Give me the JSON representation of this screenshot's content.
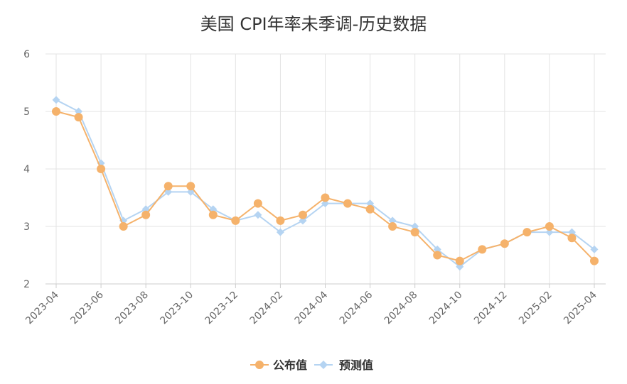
{
  "chart_data": {
    "type": "line",
    "title": "美国 CPI年率未季调-历史数据",
    "xlabel": "",
    "ylabel": "",
    "ylim": [
      2,
      6
    ],
    "yticks": [
      "2",
      "3",
      "4",
      "5",
      "6"
    ],
    "grid": true,
    "legend_position": "bottom",
    "x": [
      "2023-04",
      "2023-05",
      "2023-06",
      "2023-07",
      "2023-08",
      "2023-09",
      "2023-10",
      "2023-11",
      "2023-12",
      "2024-01",
      "2024-02",
      "2024-03",
      "2024-04",
      "2024-05",
      "2024-06",
      "2024-07",
      "2024-08",
      "2024-09",
      "2024-10",
      "2024-11",
      "2024-12",
      "2025-01",
      "2025-02",
      "2025-03",
      "2025-04"
    ],
    "xtick_labels": [
      "2023-04",
      "2023-06",
      "2023-08",
      "2023-10",
      "2023-12",
      "2024-02",
      "2024-04",
      "2024-06",
      "2024-08",
      "2024-10",
      "2024-12",
      "2025-02",
      "2025-04"
    ],
    "series": [
      {
        "name": "公布值",
        "color": "#f5b26b",
        "marker": "circle",
        "values": [
          5.0,
          4.9,
          4.0,
          3.0,
          3.2,
          3.7,
          3.7,
          3.2,
          3.1,
          3.4,
          3.1,
          3.2,
          3.5,
          3.4,
          3.3,
          3.0,
          2.9,
          2.5,
          2.4,
          2.6,
          2.7,
          2.9,
          3.0,
          2.8,
          2.4
        ]
      },
      {
        "name": "预测值",
        "color": "#b5d4f2",
        "marker": "diamond",
        "values": [
          5.2,
          5.0,
          4.1,
          3.1,
          3.3,
          3.6,
          3.6,
          3.3,
          3.1,
          3.2,
          2.9,
          3.1,
          3.4,
          3.4,
          3.4,
          3.1,
          3.0,
          2.6,
          2.3,
          2.6,
          2.7,
          2.9,
          2.9,
          2.9,
          2.6
        ]
      }
    ]
  }
}
